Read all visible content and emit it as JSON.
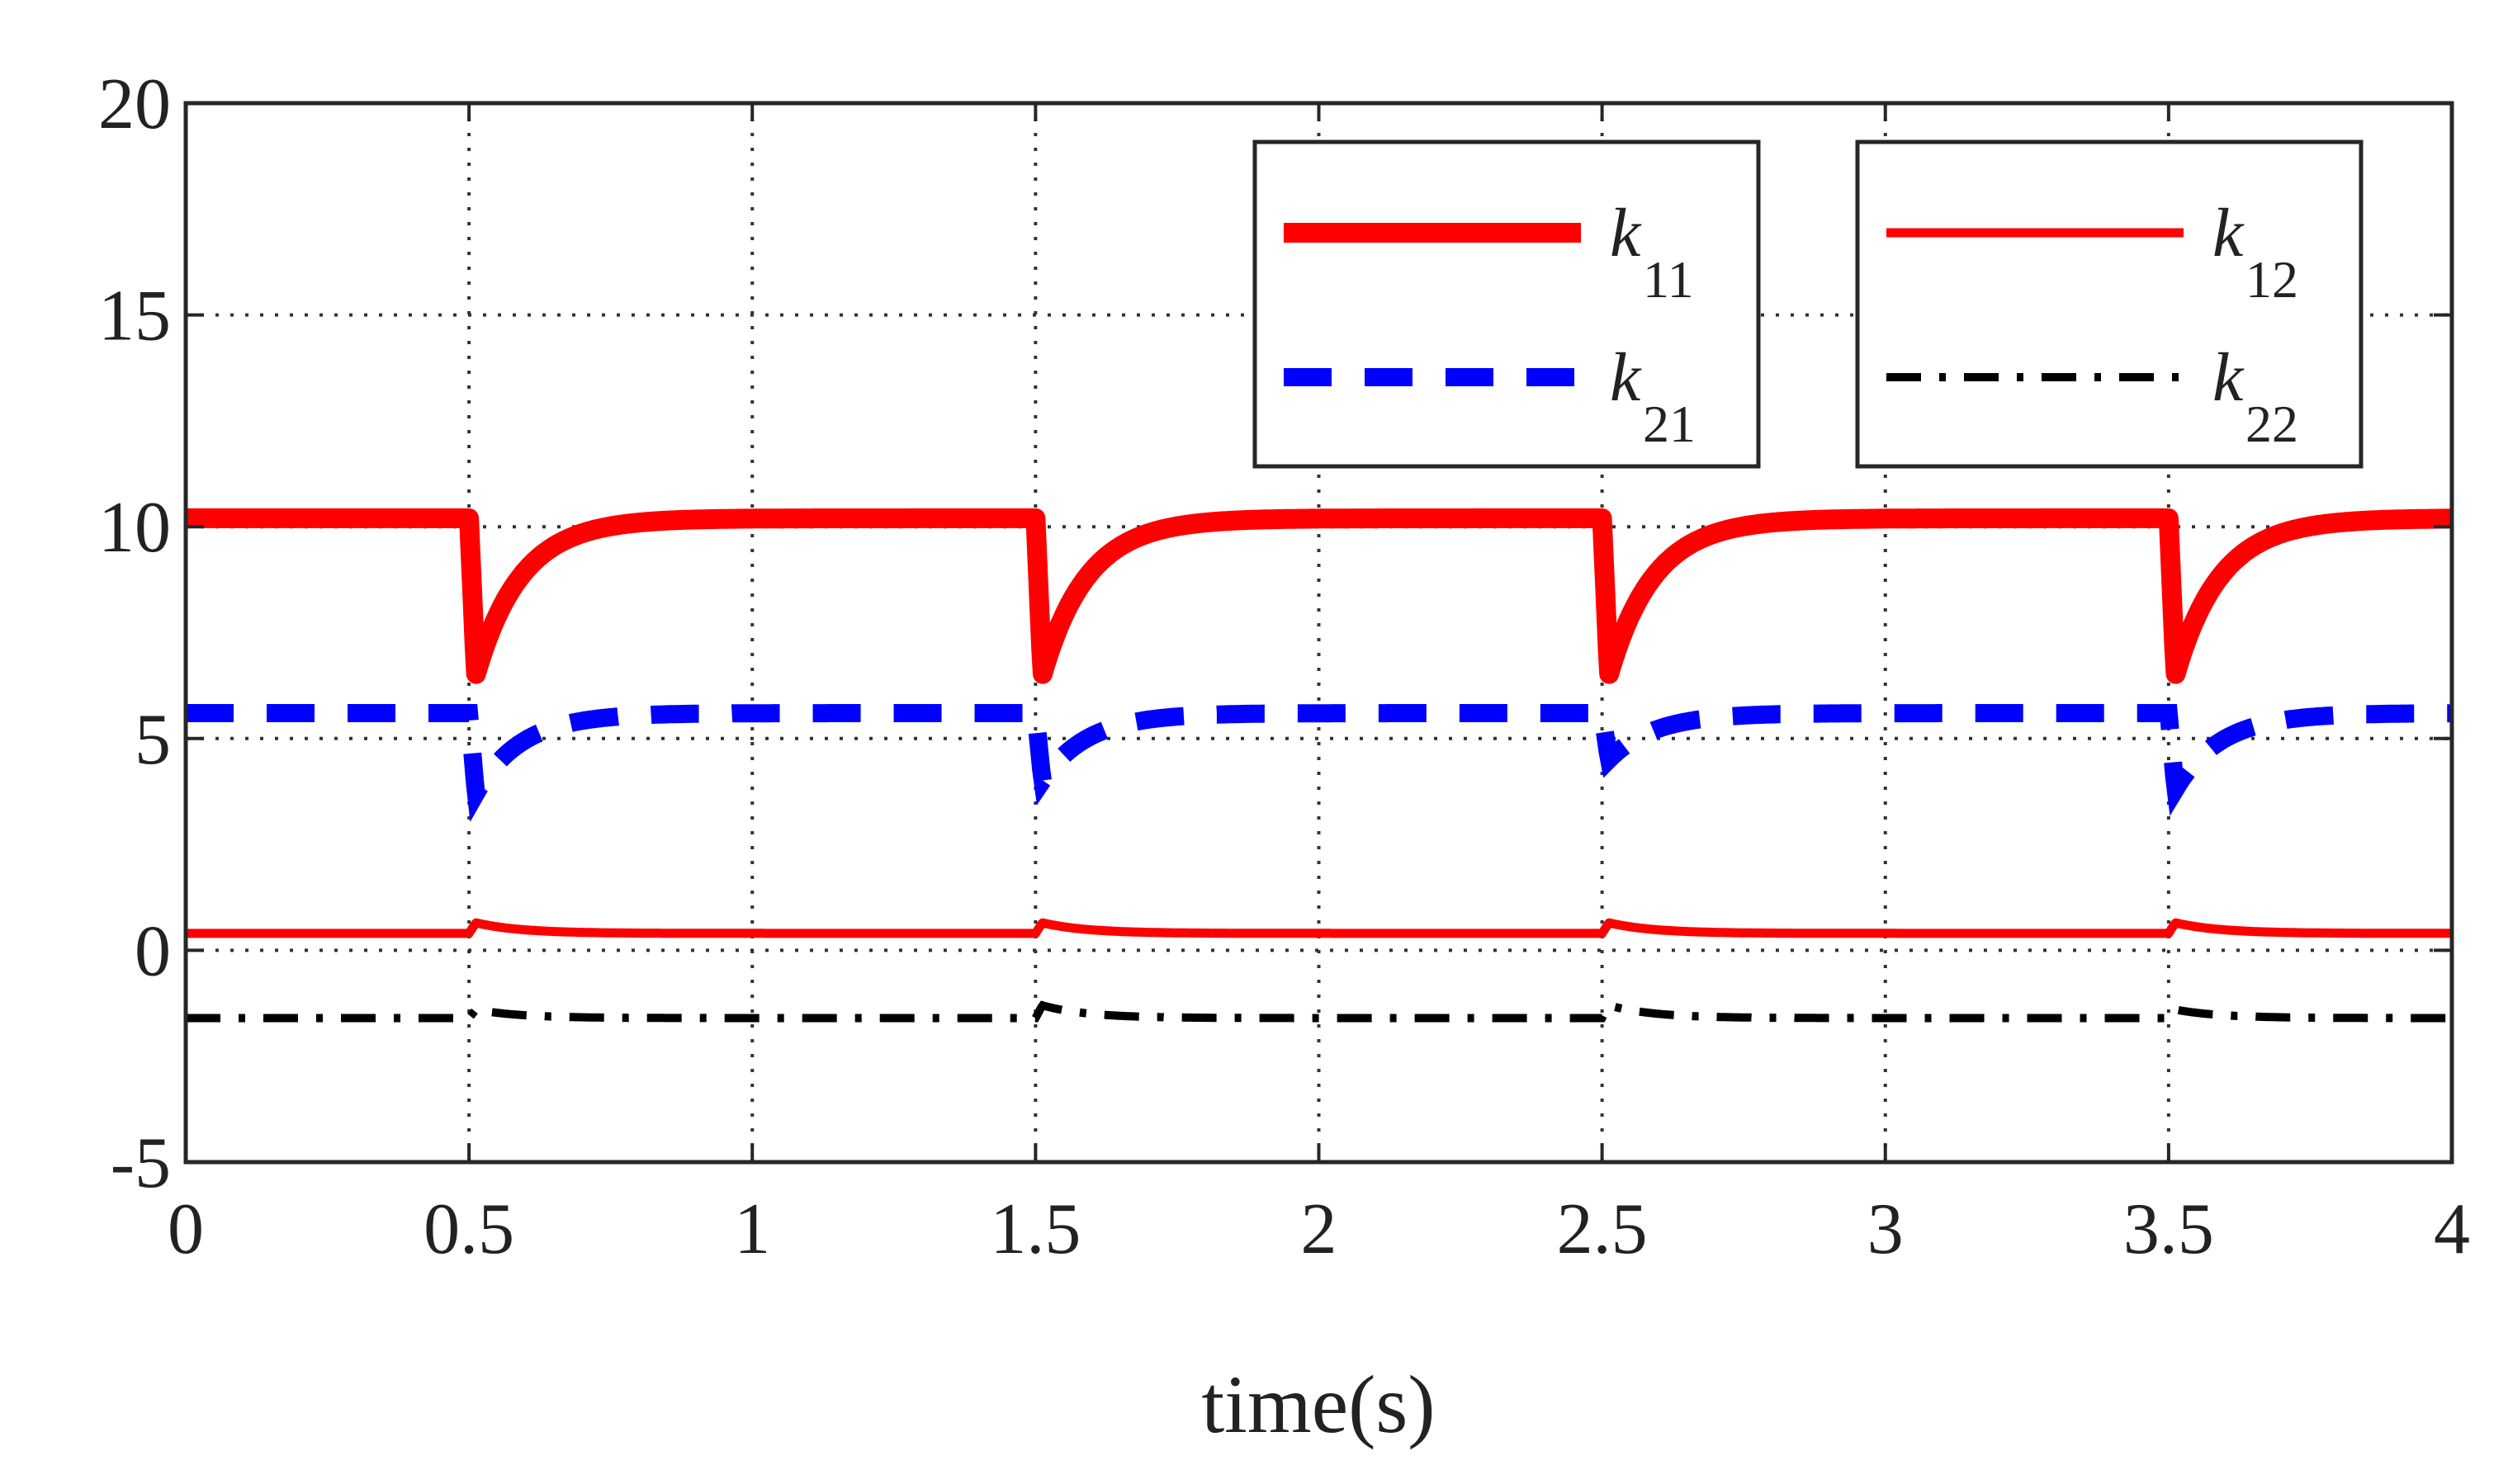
{
  "chart_data": {
    "type": "line",
    "title": "",
    "xlabel": "time(s)",
    "ylabel": "",
    "xlim": [
      0,
      4
    ],
    "ylim": [
      -5,
      20
    ],
    "grid": true,
    "grid_style": "dotted",
    "xticks": [
      0,
      0.5,
      1,
      1.5,
      2,
      2.5,
      3,
      3.5,
      4
    ],
    "xtick_labels": [
      "0",
      "0.5",
      "1",
      "1.5",
      "2",
      "2.5",
      "3",
      "3.5",
      "4"
    ],
    "yticks": [
      -5,
      0,
      5,
      10,
      15,
      20
    ],
    "ytick_labels": [
      "-5",
      "0",
      "5",
      "10",
      "15",
      "20"
    ],
    "switch_times": [
      0.5,
      1.5,
      2.5,
      3.5
    ],
    "recovery_tau": 0.08,
    "series": [
      {
        "name": "k11",
        "label_main": "k",
        "label_sub": "11",
        "color": "#ff0000",
        "style": "solid-thick",
        "steady": 10.2,
        "dips": [
          6.5,
          6.5,
          6.5,
          6.5
        ]
      },
      {
        "name": "k21",
        "label_main": "k",
        "label_sub": "21",
        "color": "#0000ff",
        "style": "dashed",
        "steady": 5.6,
        "dips": [
          3.7,
          4.0,
          4.5,
          3.8
        ]
      },
      {
        "name": "k12",
        "label_main": "k",
        "label_sub": "12",
        "color": "#ff0000",
        "style": "solid-thin",
        "steady": 0.4,
        "dips": [
          0.65,
          0.65,
          0.65,
          0.65
        ]
      },
      {
        "name": "k22",
        "label_main": "k",
        "label_sub": "22",
        "color": "#000000",
        "style": "dash-dot",
        "steady": -1.6,
        "dips": [
          -1.4,
          -1.3,
          -1.3,
          -1.4
        ]
      }
    ],
    "legend": [
      {
        "position": "top-center",
        "entries": [
          "k11",
          "k21"
        ]
      },
      {
        "position": "top-right",
        "entries": [
          "k12",
          "k22"
        ]
      }
    ]
  }
}
